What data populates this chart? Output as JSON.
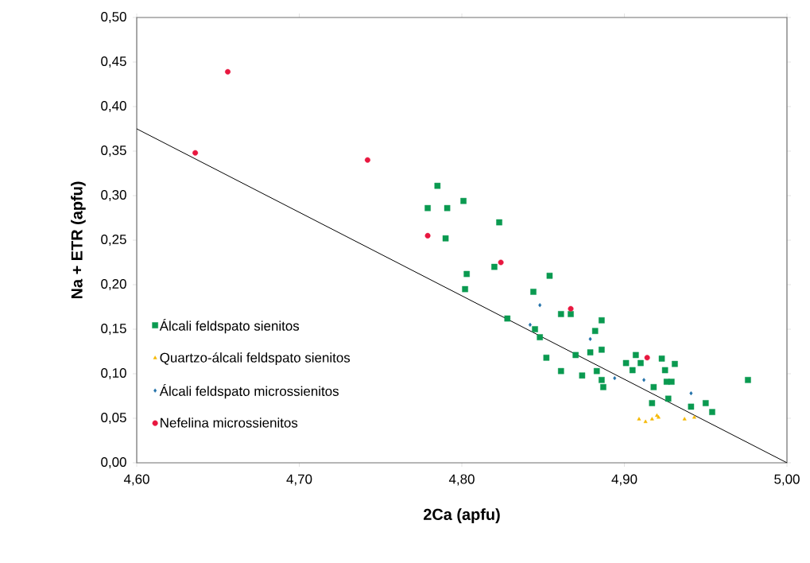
{
  "chart_data": {
    "type": "scatter",
    "xlabel": "2Ca (apfu)",
    "ylabel": "Na + ETR (apfu)",
    "xlim": [
      4.6,
      5.0
    ],
    "ylim": [
      0.0,
      0.5
    ],
    "xticks": [
      {
        "value": 4.6,
        "label": "4,60"
      },
      {
        "value": 4.7,
        "label": "4,70"
      },
      {
        "value": 4.8,
        "label": "4,80"
      },
      {
        "value": 4.9,
        "label": "4,90"
      },
      {
        "value": 5.0,
        "label": "5,00"
      }
    ],
    "yticks": [
      {
        "value": 0.0,
        "label": "0,00"
      },
      {
        "value": 0.05,
        "label": "0,05"
      },
      {
        "value": 0.1,
        "label": "0,10"
      },
      {
        "value": 0.15,
        "label": "0,15"
      },
      {
        "value": 0.2,
        "label": "0,20"
      },
      {
        "value": 0.25,
        "label": "0,25"
      },
      {
        "value": 0.3,
        "label": "0,30"
      },
      {
        "value": 0.35,
        "label": "0,35"
      },
      {
        "value": 0.4,
        "label": "0,40"
      },
      {
        "value": 0.45,
        "label": "0,45"
      },
      {
        "value": 0.5,
        "label": "0,50"
      }
    ],
    "grid": false,
    "legend": "left",
    "series": [
      {
        "type": "line",
        "color": "#000000",
        "marker": "none",
        "x": [
          4.6,
          5.0
        ],
        "values": [
          0.375,
          0.0
        ]
      },
      {
        "name": "Álcali feldspato sienitos",
        "color": "#0a9a50",
        "marker": "square",
        "x": [
          4.785,
          4.779,
          4.791,
          4.801,
          4.79,
          4.803,
          4.802,
          4.823,
          4.82,
          4.854,
          4.844,
          4.861,
          4.867,
          4.886,
          4.882,
          4.828,
          4.845,
          4.848,
          4.852,
          4.87,
          4.879,
          4.886,
          4.861,
          4.874,
          4.883,
          4.886,
          4.887,
          4.901,
          4.907,
          4.91,
          4.923,
          4.931,
          4.925,
          4.905,
          4.926,
          4.929,
          4.918,
          4.927,
          4.917,
          4.941,
          4.95,
          4.954,
          4.976
        ],
        "values": [
          0.311,
          0.286,
          0.286,
          0.294,
          0.252,
          0.212,
          0.195,
          0.27,
          0.22,
          0.21,
          0.192,
          0.167,
          0.167,
          0.16,
          0.148,
          0.162,
          0.15,
          0.141,
          0.118,
          0.121,
          0.124,
          0.127,
          0.103,
          0.098,
          0.103,
          0.093,
          0.085,
          0.112,
          0.121,
          0.112,
          0.117,
          0.111,
          0.104,
          0.104,
          0.091,
          0.091,
          0.085,
          0.072,
          0.067,
          0.063,
          0.067,
          0.057,
          0.093
        ]
      },
      {
        "name": "Quartzo-álcali feldspato sienitos",
        "color": "#f5b800",
        "marker": "triangle",
        "x": [
          4.909,
          4.913,
          4.917,
          4.92,
          4.921,
          4.937,
          4.943
        ],
        "values": [
          0.049,
          0.046,
          0.049,
          0.053,
          0.051,
          0.049,
          0.051
        ]
      },
      {
        "name": "Álcali feldspato microssienitos",
        "color": "#1f6fa8",
        "marker": "diamond",
        "x": [
          4.848,
          4.842,
          4.879,
          4.894,
          4.912,
          4.941
        ],
        "values": [
          0.177,
          0.155,
          0.139,
          0.095,
          0.093,
          0.078
        ]
      },
      {
        "name": "Nefelina microssienitos",
        "color": "#e8173f",
        "marker": "circle",
        "x": [
          4.656,
          4.636,
          4.742,
          4.779,
          4.824,
          4.867,
          4.914
        ],
        "values": [
          0.439,
          0.348,
          0.34,
          0.255,
          0.225,
          0.173,
          0.118
        ]
      }
    ]
  }
}
